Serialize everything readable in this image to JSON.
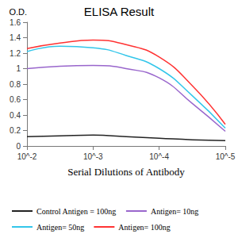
{
  "chart_data": {
    "type": "line",
    "title": "ELISA Result",
    "y_label": "O.D.",
    "x_label": "Serial Dilutions of Antibody",
    "x": [
      0.01,
      0.003162,
      0.001,
      0.0003162,
      0.0001,
      3.162e-05,
      1e-05
    ],
    "series": [
      {
        "name": "Control Antigen = 100ng",
        "color": "#222222",
        "values": [
          0.12,
          0.13,
          0.14,
          0.12,
          0.1,
          0.08,
          0.07
        ]
      },
      {
        "name": "Antigen= 10ng",
        "color": "#9966cc",
        "values": [
          1.0,
          1.03,
          1.04,
          1.0,
          0.88,
          0.55,
          0.19
        ]
      },
      {
        "name": "Antigen= 50ng",
        "color": "#33c6ea",
        "values": [
          1.22,
          1.29,
          1.27,
          1.17,
          1.0,
          0.65,
          0.23
        ]
      },
      {
        "name": "Antigen= 100ng",
        "color": "#ff3333",
        "values": [
          1.26,
          1.33,
          1.37,
          1.31,
          1.15,
          0.78,
          0.28
        ]
      }
    ],
    "log": "x",
    "xlim": [
      0.01,
      1e-05
    ],
    "xticks": [
      {
        "value": 0.01,
        "label": "10^-2"
      },
      {
        "value": 0.001,
        "label": "10^-3"
      },
      {
        "value": 0.0001,
        "label": "10^-4"
      },
      {
        "value": 1e-05,
        "label": "10^-5"
      }
    ],
    "ylim": [
      0,
      1.6
    ],
    "yticks": [
      0,
      0.2,
      0.4,
      0.6,
      0.8,
      1,
      1.2,
      1.4,
      1.6
    ],
    "grid": false,
    "legend": "bottom",
    "marker": "none",
    "line_style": "solid"
  }
}
